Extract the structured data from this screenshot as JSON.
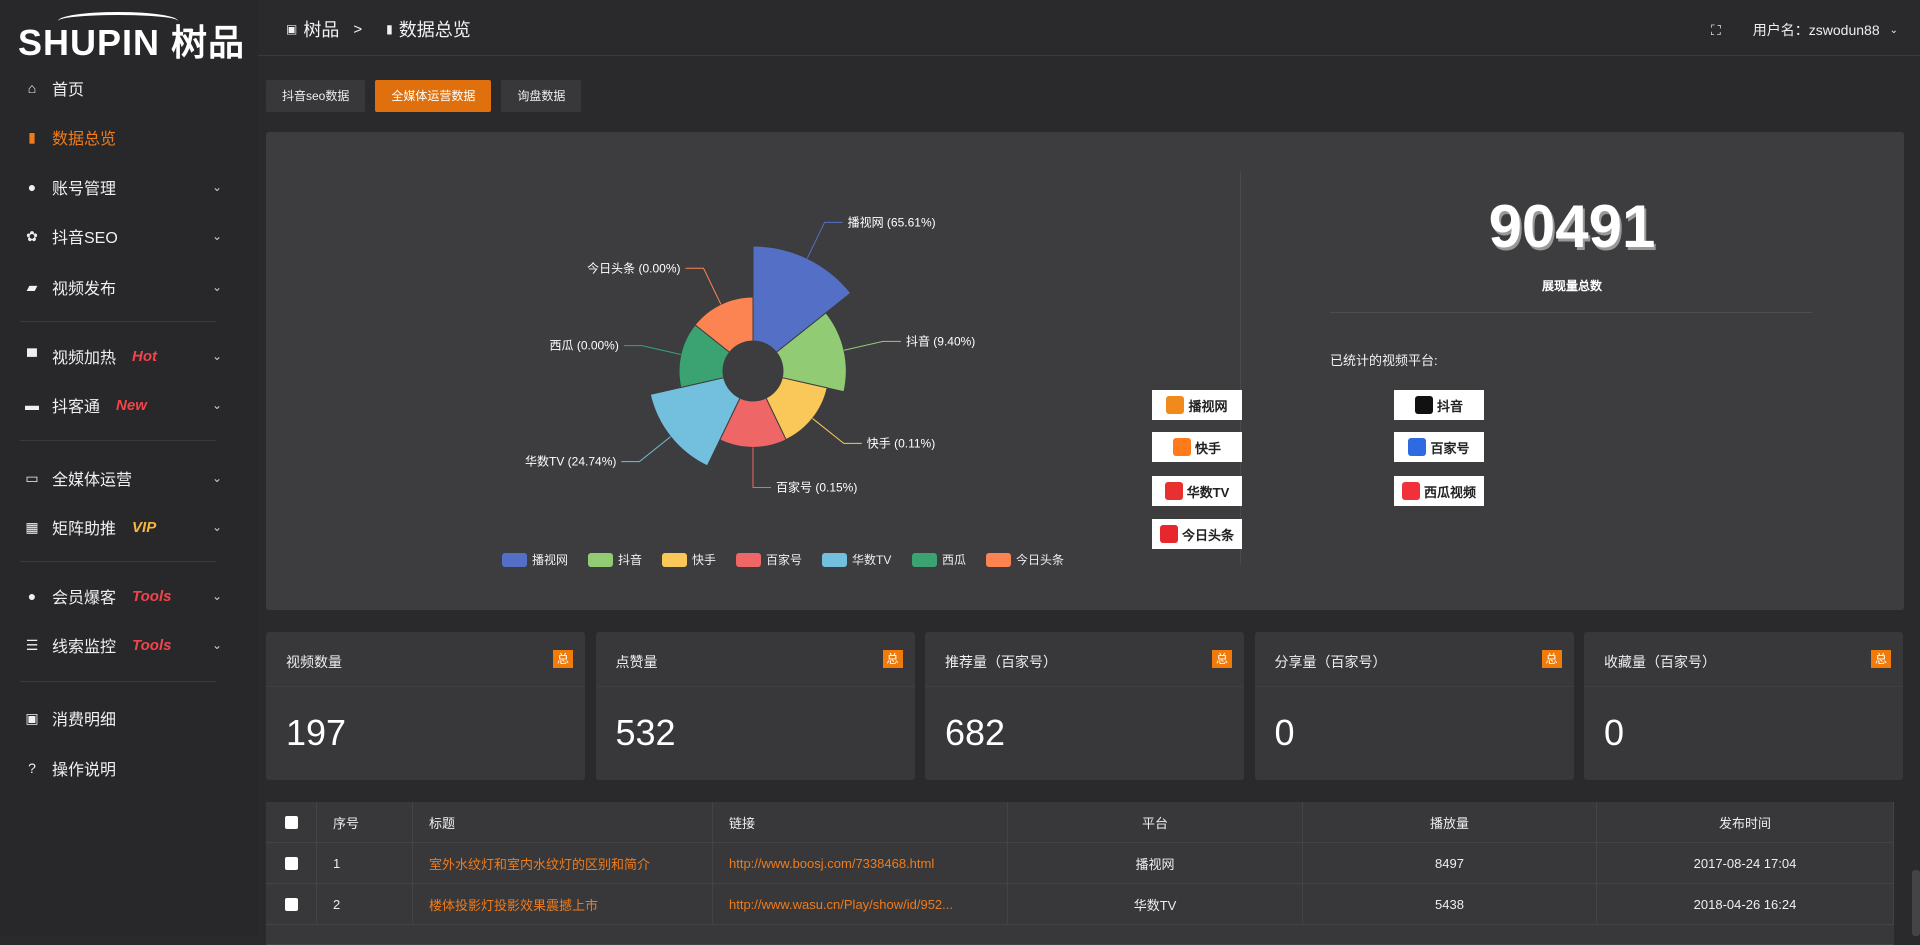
{
  "brand": {
    "logo_text": "SHUPIN 树品"
  },
  "header": {
    "breadcrumb": [
      "树品",
      "数据总览"
    ],
    "breadcrumb_sep": ">",
    "user_label": "用户名：zswodun88"
  },
  "sidebar": {
    "items": [
      {
        "label": "首页",
        "icon": "home-icon",
        "glyph": "⌂"
      },
      {
        "label": "数据总览",
        "icon": "bar-chart-icon",
        "glyph": "▮",
        "active": true
      },
      {
        "label": "账号管理",
        "icon": "user-icon",
        "glyph": "●",
        "chevron": true
      },
      {
        "label": "抖音SEO",
        "icon": "gear-icon",
        "glyph": "✿",
        "chevron": true
      },
      {
        "label": "视频发布",
        "icon": "video-icon",
        "glyph": "▰",
        "chevron": true
      },
      {
        "label": "视频加热",
        "icon": "flag-icon",
        "glyph": "▀",
        "chevron": true,
        "badge": "Hot",
        "badge_color": "#f2444a"
      },
      {
        "label": "抖客通",
        "icon": "chat-icon",
        "glyph": "▬",
        "chevron": true,
        "badge": "New",
        "badge_color": "#f2444a"
      },
      {
        "label": "全媒体运营",
        "icon": "monitor-icon",
        "glyph": "▭",
        "chevron": true
      },
      {
        "label": "矩阵助推",
        "icon": "grid-icon",
        "glyph": "▦",
        "chevron": true,
        "badge": "VIP",
        "badge_color": "#f5b93a"
      },
      {
        "label": "会员爆客",
        "icon": "user-icon",
        "glyph": "●",
        "chevron": true,
        "badge": "Tools",
        "badge_color": "#f2444a"
      },
      {
        "label": "线索监控",
        "icon": "sliders-icon",
        "glyph": "☰",
        "chevron": true,
        "badge": "Tools",
        "badge_color": "#f2444a"
      },
      {
        "label": "消费明细",
        "icon": "wallet-icon",
        "glyph": "▣"
      },
      {
        "label": "操作说明",
        "icon": "help-icon",
        "glyph": "?"
      }
    ]
  },
  "tabs": [
    {
      "label": "抖音seo数据"
    },
    {
      "label": "全媒体运营数据",
      "active": true
    },
    {
      "label": "询盘数据"
    }
  ],
  "chart_data": {
    "type": "pie",
    "variant": "rose",
    "categories": [
      "播视网",
      "抖音",
      "快手",
      "百家号",
      "华数TV",
      "西瓜",
      "今日头条"
    ],
    "values": [
      65.61,
      9.4,
      0.11,
      0.15,
      24.74,
      0.0,
      0.0
    ],
    "labels": [
      "播视网 (65.61%)",
      "抖音 (9.40%)",
      "快手 (0.11%)",
      "百家号 (0.15%)",
      "华数TV (24.74%)",
      "西瓜 (0.00%)",
      "今日头条 (0.00%)"
    ],
    "colors": [
      "#5470c6",
      "#91cc75",
      "#fac858",
      "#ee6666",
      "#73c0de",
      "#3ba272",
      "#fc8452"
    ],
    "legend": "bottom"
  },
  "summary": {
    "total": "90491",
    "total_label": "展现量总数",
    "platforms_title": "已统计的视频平台:",
    "platforms": [
      {
        "name": "播视网",
        "color": "#f08a1a"
      },
      {
        "name": "抖音",
        "color": "#111"
      },
      {
        "name": "快手",
        "color": "#ff7a1a"
      },
      {
        "name": "百家号",
        "color": "#2f6be0"
      },
      {
        "name": "华数TV",
        "color": "#e83030"
      },
      {
        "name": "西瓜视频",
        "color": "#f0303a"
      },
      {
        "name": "今日头条",
        "color": "#e8262d"
      }
    ]
  },
  "cards": [
    {
      "title": "视频数量",
      "tag": "总",
      "value": "197"
    },
    {
      "title": "点赞量",
      "tag": "总",
      "value": "532"
    },
    {
      "title": "推荐量（百家号）",
      "tag": "总",
      "value": "682"
    },
    {
      "title": "分享量（百家号）",
      "tag": "总",
      "value": "0"
    },
    {
      "title": "收藏量（百家号）",
      "tag": "总",
      "value": "0"
    }
  ],
  "table": {
    "headers": [
      "序号",
      "标题",
      "链接",
      "平台",
      "播放量",
      "发布时间"
    ],
    "rows": [
      [
        "1",
        "室外水纹灯和室内水纹灯的区别和简介",
        "http://www.boosj.com/7338468.html",
        "播视网",
        "8497",
        "2017-08-24 17:04"
      ],
      [
        "2",
        "楼体投影灯投影效果震撼上市",
        "http://www.wasu.cn/Play/show/id/952...",
        "华数TV",
        "5438",
        "2018-04-26 16:24"
      ]
    ]
  }
}
